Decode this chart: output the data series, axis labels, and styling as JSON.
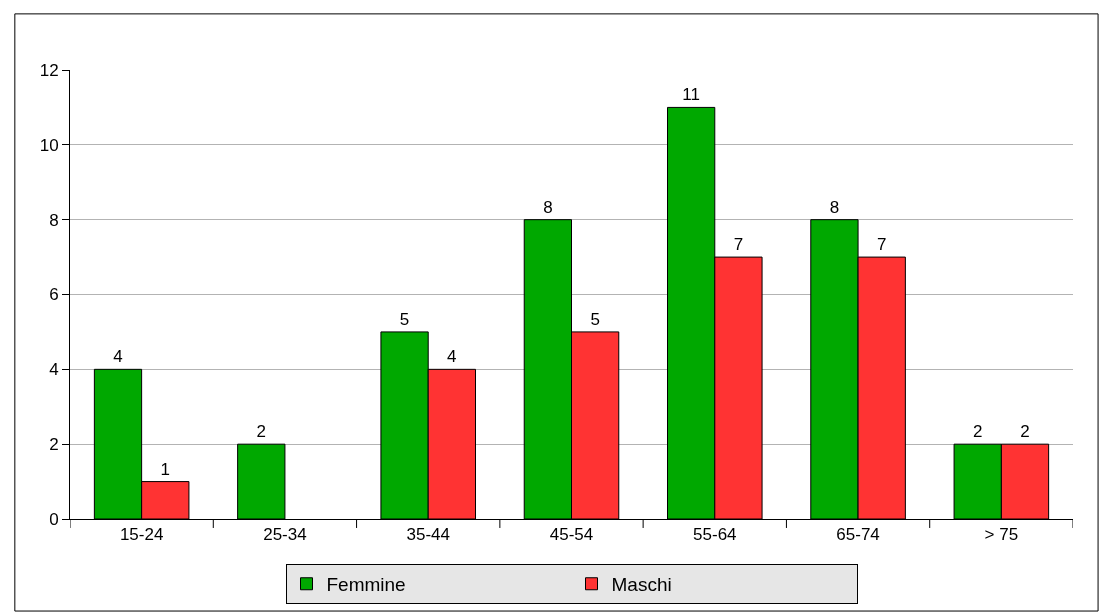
{
  "chart_data": {
    "type": "bar",
    "categories": [
      "15-24",
      "25-34",
      "35-44",
      "45-54",
      "55-64",
      "65-74",
      "> 75"
    ],
    "series": [
      {
        "name": "Femmine",
        "color": "#00a800",
        "values": [
          4,
          2,
          5,
          8,
          11,
          8,
          2
        ]
      },
      {
        "name": "Maschi",
        "color": "#ff3333",
        "values": [
          1,
          null,
          4,
          5,
          7,
          7,
          2
        ]
      }
    ],
    "ylim": [
      0,
      12
    ],
    "yticks": [
      0,
      2,
      4,
      6,
      8,
      10,
      12
    ],
    "grid": "y",
    "legend": "bottom",
    "data_labels": true
  }
}
